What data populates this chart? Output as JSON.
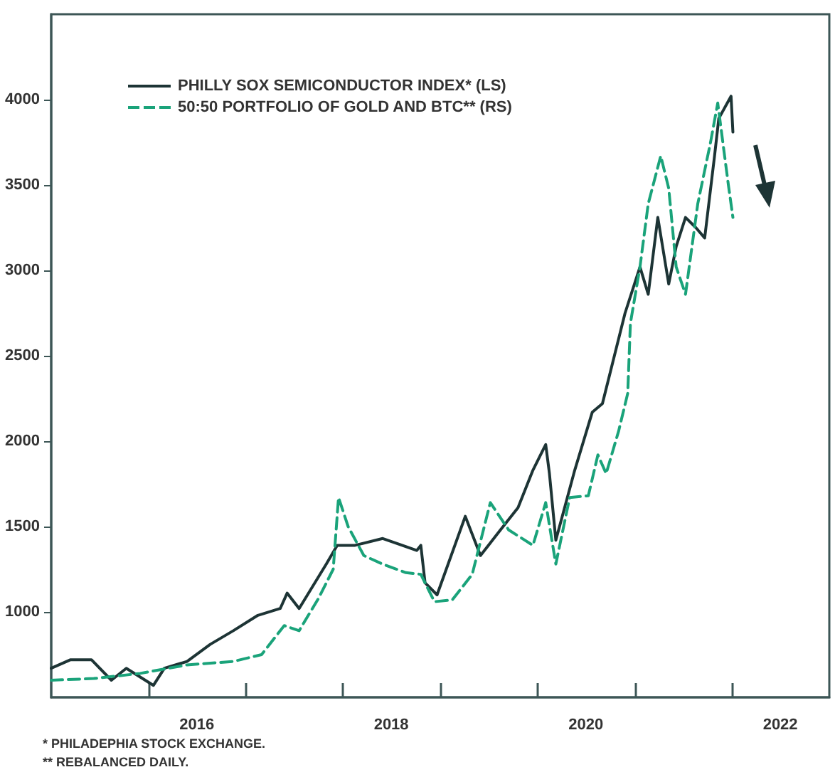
{
  "chart_data": {
    "type": "line",
    "xlim": [
      "2015-01-01",
      "2023-01-01"
    ],
    "xticks": [
      {
        "value": "2016-01-01",
        "label": null
      },
      {
        "value": "2016-07-01",
        "label": "2016"
      },
      {
        "value": "2017-01-01",
        "label": null
      },
      {
        "value": "2018-01-01",
        "label": null
      },
      {
        "value": "2018-07-01",
        "label": "2018"
      },
      {
        "value": "2019-01-01",
        "label": null
      },
      {
        "value": "2020-01-01",
        "label": null
      },
      {
        "value": "2020-07-01",
        "label": "2020"
      },
      {
        "value": "2021-01-01",
        "label": null
      },
      {
        "value": "2022-01-01",
        "label": null
      },
      {
        "value": "2022-07-01",
        "label": "2022"
      }
    ],
    "ylim": [
      500,
      4500
    ],
    "yticks": [
      1000,
      1500,
      2000,
      2500,
      3000,
      3500,
      4000
    ],
    "grid": false,
    "legend": "top left",
    "marker": "none",
    "series": [
      {
        "name": "PHILLY SOX SEMICONDUCTOR INDEX* (LS)",
        "color": "#1d3435",
        "line_style": "solid",
        "x": [
          "2015-01-01",
          "2015-03-15",
          "2015-06-01",
          "2015-08-15",
          "2015-10-10",
          "2016-01-20",
          "2016-03-01",
          "2016-05-25",
          "2016-08-20",
          "2016-11-15",
          "2017-02-15",
          "2017-05-10",
          "2017-06-05",
          "2017-07-20",
          "2017-10-30",
          "2017-12-10",
          "2018-02-15",
          "2018-05-30",
          "2018-10-05",
          "2018-10-20",
          "2018-11-05",
          "2018-12-20",
          "2019-04-05",
          "2019-06-01",
          "2019-08-15",
          "2019-10-20",
          "2019-12-15",
          "2020-02-01",
          "2020-02-15",
          "2020-03-10",
          "2020-05-20",
          "2020-07-25",
          "2020-09-01",
          "2020-11-25",
          "2021-01-20",
          "2021-02-20",
          "2021-03-28",
          "2021-05-08",
          "2021-06-05",
          "2021-07-10",
          "2021-08-18",
          "2021-09-20",
          "2021-10-27",
          "2021-11-12",
          "2021-12-28",
          "2022-01-04"
        ],
        "values": [
          670,
          720,
          720,
          600,
          670,
          570,
          670,
          710,
          810,
          890,
          980,
          1020,
          1110,
          1020,
          1280,
          1390,
          1390,
          1430,
          1360,
          1390,
          1170,
          1100,
          1560,
          1330,
          1480,
          1610,
          1830,
          1980,
          1810,
          1420,
          1830,
          2170,
          2220,
          2750,
          3020,
          2860,
          3310,
          2920,
          3140,
          3310,
          3250,
          3190,
          3670,
          3890,
          4020,
          3810
        ]
      },
      {
        "name": "50:50 PORTFOLIO OF GOLD AND BTC** (RS)",
        "color": "#1aa37a",
        "line_style": "dashed",
        "x": [
          "2015-01-01",
          "2015-06-10",
          "2015-12-01",
          "2016-05-25",
          "2016-11-15",
          "2017-03-01",
          "2017-05-25",
          "2017-07-20",
          "2017-10-01",
          "2017-11-25",
          "2017-12-15",
          "2018-01-20",
          "2018-03-20",
          "2018-05-30",
          "2018-08-25",
          "2018-10-20",
          "2018-12-10",
          "2019-02-15",
          "2019-05-01",
          "2019-07-08",
          "2019-09-15",
          "2019-12-15",
          "2020-02-01",
          "2020-03-10",
          "2020-05-01",
          "2020-07-10",
          "2020-08-15",
          "2020-09-15",
          "2020-11-01",
          "2020-12-05",
          "2020-12-15",
          "2021-01-20",
          "2021-02-20",
          "2021-04-08",
          "2021-05-08",
          "2021-06-05",
          "2021-07-10",
          "2021-08-25",
          "2021-10-12",
          "2021-11-08",
          "2021-12-18",
          "2022-01-04"
        ],
        "values": [
          600,
          610,
          640,
          690,
          710,
          750,
          920,
          890,
          1080,
          1250,
          1670,
          1500,
          1330,
          1280,
          1230,
          1220,
          1060,
          1070,
          1220,
          1640,
          1480,
          1390,
          1640,
          1280,
          1670,
          1680,
          1920,
          1810,
          2060,
          2280,
          2690,
          3020,
          3390,
          3670,
          3480,
          3020,
          2860,
          3390,
          3750,
          3980,
          3500,
          3310
        ]
      }
    ],
    "annotations": [
      "* PHILADEPHIA STOCK EXCHANGE.",
      "** REBALANCED DAILY."
    ]
  }
}
